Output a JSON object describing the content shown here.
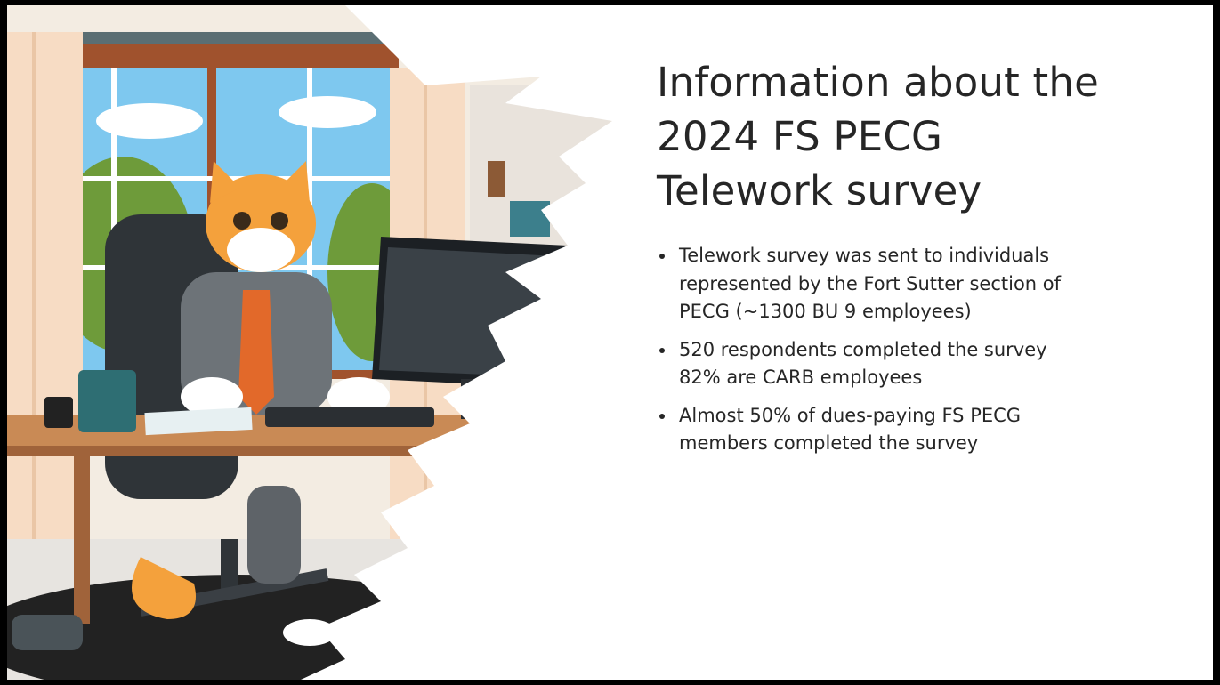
{
  "slide": {
    "title": [
      "Information about the",
      "2024 FS PECG",
      "Telework survey"
    ],
    "bullets": [
      [
        "Telework survey was sent to individuals",
        "represented by the Fort Sutter section of",
        "PECG (~1300 BU 9 employees)"
      ],
      [
        "520 respondents completed the survey",
        "82% are CARB employees"
      ],
      [
        "Almost 50% of dues-paying FS PECG",
        "members completed the survey"
      ]
    ]
  }
}
